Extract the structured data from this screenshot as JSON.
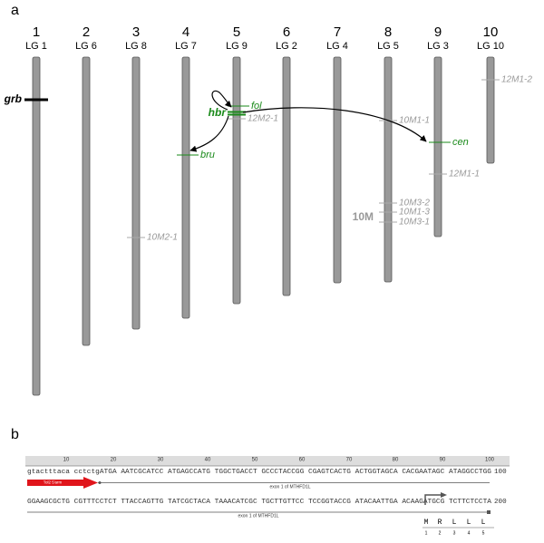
{
  "panel_a": {
    "label": "a",
    "chromosomes": [
      {
        "number": "1",
        "lg": "LG 1"
      },
      {
        "number": "2",
        "lg": "LG 6"
      },
      {
        "number": "3",
        "lg": "LG 8"
      },
      {
        "number": "4",
        "lg": "LG 7"
      },
      {
        "number": "5",
        "lg": "LG 9"
      },
      {
        "number": "6",
        "lg": "LG 2"
      },
      {
        "number": "7",
        "lg": "LG 4"
      },
      {
        "number": "8",
        "lg": "LG 5"
      },
      {
        "number": "9",
        "lg": "LG 3"
      },
      {
        "number": "10",
        "lg": "LG 10"
      }
    ],
    "markers": [
      "grb",
      "hbr",
      "fol",
      "12M2-1",
      "bru",
      "10M1-1",
      "cen",
      "12M1-2",
      "12M1-1",
      "10M3-2",
      "10M1-3",
      "10M3-1",
      "10M",
      "10M2-1"
    ]
  },
  "panel_b": {
    "label": "b",
    "ruler": [
      "10",
      "20",
      "30",
      "40",
      "50",
      "60",
      "70",
      "80",
      "90",
      "100"
    ],
    "rows": [
      {
        "sequence": "gtactttaca cctctgATGA AATCGCATCC ATGAGCCATG TGGCTGACCT GCCCTACCGG CGAGTCACTG ACTGGTAGCA CACGAATAGC ATAGGCCTGG",
        "end": "100",
        "feature": "Tol2 5'arm",
        "exon": "exon 1 of MTHFD1L"
      },
      {
        "sequence": "GGAAGCGCTG CGTTTCCTCT TTACCAGTTG TATCGCTACA TAAACATCGC TGCTTGTTCC TCCGGTACCG ATACAATTGA ACAAGATGCG TCTTCTCCTA",
        "end": "200",
        "exon": "exon 1 of MTHFD1L"
      }
    ],
    "protein": {
      "residues": [
        "M",
        "R",
        "L",
        "L",
        "L"
      ],
      "numbers": [
        "1",
        "2",
        "3",
        "4",
        "5"
      ]
    }
  }
}
